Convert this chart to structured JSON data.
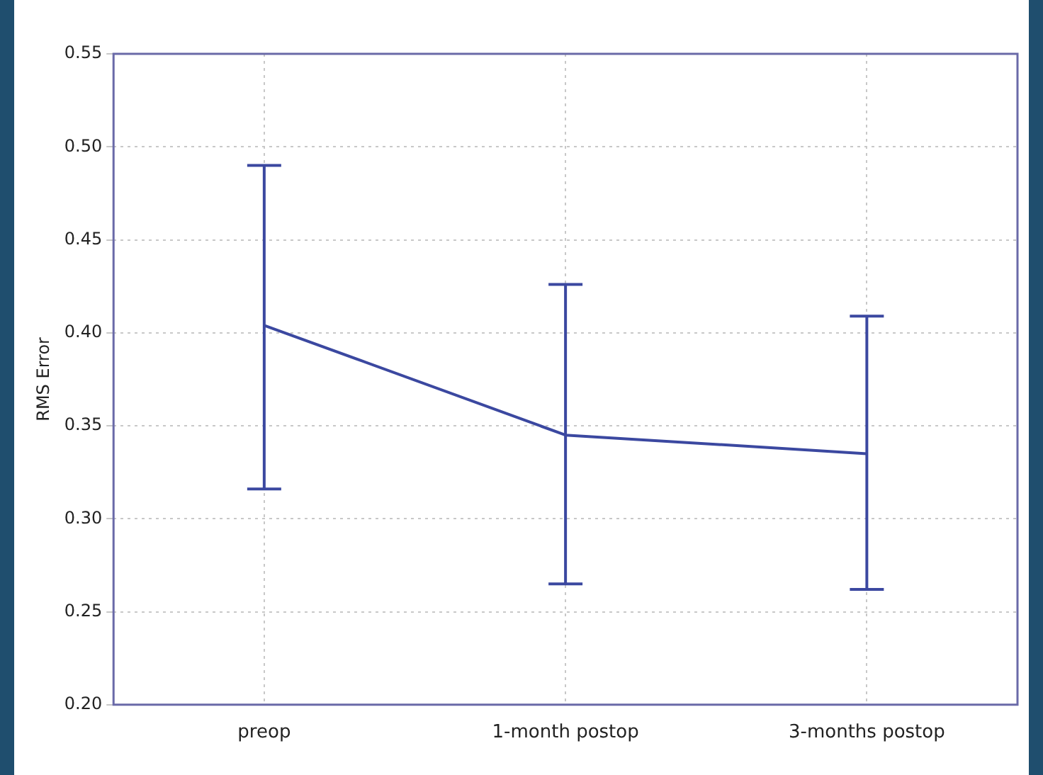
{
  "chart_data": {
    "type": "line",
    "ylabel": "RMS Error",
    "categories": [
      "preop",
      "1-month postop",
      "3-months postop"
    ],
    "series": [
      {
        "color": "#3b48a0",
        "values": [
          0.404,
          0.345,
          0.335
        ],
        "errors": [
          [
            0.316,
            0.49
          ],
          [
            0.265,
            0.426
          ],
          [
            0.262,
            0.409
          ]
        ]
      }
    ],
    "ylim": [
      0.2,
      0.55
    ],
    "yticks": [
      {
        "value": 0.2,
        "label": "0.20"
      },
      0.25,
      {
        "value": 0.3,
        "label": "0.30"
      },
      0.35,
      {
        "value": 0.4,
        "label": "0.40"
      },
      0.45,
      {
        "value": 0.5,
        "label": "0.50"
      },
      0.55
    ],
    "grid": true,
    "marker": "none",
    "line_style": "solid",
    "legend": false
  }
}
